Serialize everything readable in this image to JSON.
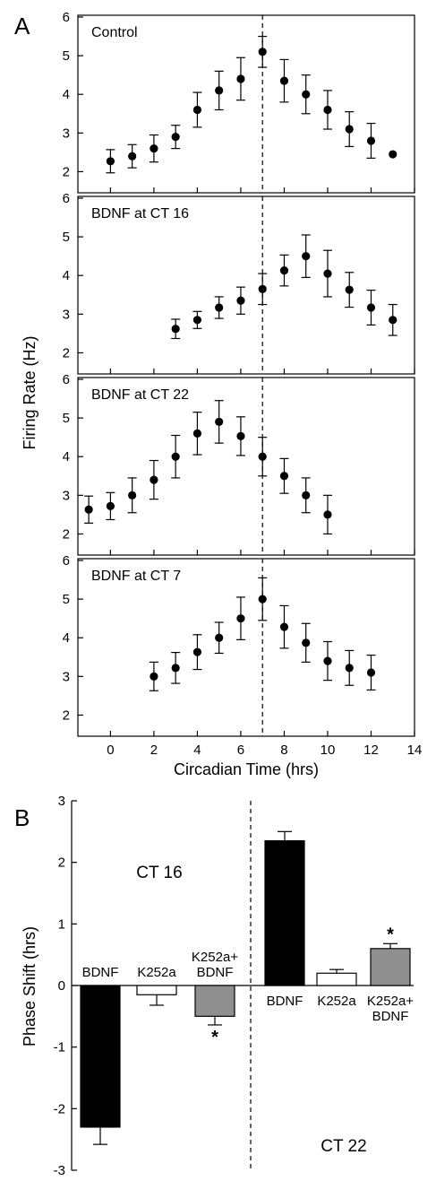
{
  "figure": {
    "panel_a_letter": "A",
    "panel_b_letter": "B"
  },
  "chart_data": [
    {
      "type": "scatter",
      "title": "Control",
      "x": [
        0,
        1,
        2,
        3,
        4,
        5,
        6,
        7,
        8,
        9,
        10,
        11,
        12,
        13
      ],
      "y": [
        2.27,
        2.4,
        2.6,
        2.9,
        3.6,
        4.1,
        4.4,
        5.1,
        4.35,
        4.0,
        3.6,
        3.1,
        2.8,
        2.45
      ],
      "err": [
        0.3,
        0.3,
        0.35,
        0.3,
        0.45,
        0.5,
        0.55,
        0.4,
        0.55,
        0.5,
        0.5,
        0.45,
        0.45,
        0
      ],
      "ylim": [
        1.5,
        6
      ],
      "yticks": [
        2,
        3,
        4,
        5,
        6
      ],
      "vline": 7
    },
    {
      "type": "scatter",
      "title": "BDNF at CT 16",
      "x": [
        3,
        4,
        5,
        6,
        7,
        8,
        9,
        10,
        11,
        12,
        13
      ],
      "y": [
        2.62,
        2.85,
        3.17,
        3.35,
        3.65,
        4.13,
        4.5,
        4.05,
        3.63,
        3.17,
        2.85
      ],
      "err": [
        0.25,
        0.22,
        0.28,
        0.35,
        0.4,
        0.4,
        0.55,
        0.6,
        0.45,
        0.45,
        0.4
      ],
      "ylim": [
        1.5,
        6
      ],
      "yticks": [
        2,
        3,
        4,
        5,
        6
      ],
      "vline": 7
    },
    {
      "type": "scatter",
      "title": "BDNF at CT 22",
      "x": [
        -1,
        0,
        1,
        2,
        3,
        4,
        5,
        6,
        7,
        8,
        9,
        10
      ],
      "y": [
        2.63,
        2.72,
        3.0,
        3.4,
        4.0,
        4.6,
        4.9,
        4.53,
        4.0,
        3.5,
        3.0,
        2.5
      ],
      "err": [
        0.35,
        0.35,
        0.45,
        0.5,
        0.55,
        0.55,
        0.55,
        0.5,
        0.5,
        0.45,
        0.45,
        0.5
      ],
      "ylim": [
        1.5,
        6
      ],
      "yticks": [
        2,
        3,
        4,
        5,
        6
      ],
      "vline": 7
    },
    {
      "type": "scatter",
      "title": "BDNF at CT 7",
      "x": [
        2,
        3,
        4,
        5,
        6,
        7,
        8,
        9,
        10,
        11,
        12
      ],
      "y": [
        3.0,
        3.22,
        3.63,
        4.0,
        4.5,
        5.0,
        4.28,
        3.87,
        3.4,
        3.22,
        3.1
      ],
      "err": [
        0.37,
        0.4,
        0.45,
        0.4,
        0.55,
        0.55,
        0.55,
        0.5,
        0.5,
        0.45,
        0.45
      ],
      "ylim": [
        1.5,
        6
      ],
      "yticks": [
        2,
        3,
        4,
        5,
        6
      ],
      "vline": 7,
      "xlim": [
        -1.5,
        14
      ],
      "xticks": [
        0,
        2,
        4,
        6,
        8,
        10,
        12,
        14
      ]
    },
    {
      "type": "bar",
      "xlabel": "",
      "ylabel": "Phase Shift (hrs)",
      "ylim": [
        -3,
        3
      ],
      "yticks": [
        -3,
        -2,
        -1,
        0,
        1,
        2,
        3
      ],
      "groups": [
        {
          "label": "CT 16",
          "bars": [
            {
              "label": [
                "BDNF"
              ],
              "value": -2.3,
              "err": 0.28,
              "fill": "#000000",
              "star": ""
            },
            {
              "label": [
                "K252a"
              ],
              "value": -0.15,
              "err": 0.17,
              "fill": "#ffffff",
              "star": ""
            },
            {
              "label": [
                "K252a+",
                "BDNF"
              ],
              "value": -0.5,
              "err": 0.14,
              "fill": "#8f8f8f",
              "star": "*"
            }
          ]
        },
        {
          "label": "CT 22",
          "bars": [
            {
              "label": [
                "BDNF"
              ],
              "value": 2.35,
              "err": 0.15,
              "fill": "#000000",
              "star": ""
            },
            {
              "label": [
                "K252a"
              ],
              "value": 0.2,
              "err": 0.06,
              "fill": "#ffffff",
              "star": ""
            },
            {
              "label": [
                "K252a+",
                "BDNF"
              ],
              "value": 0.6,
              "err": 0.08,
              "fill": "#8f8f8f",
              "star": "*"
            }
          ]
        }
      ]
    }
  ],
  "axes_text": {
    "a_xlabel": "Circadian Time (hrs)",
    "a_ylabel": "Firing Rate (Hz)"
  }
}
